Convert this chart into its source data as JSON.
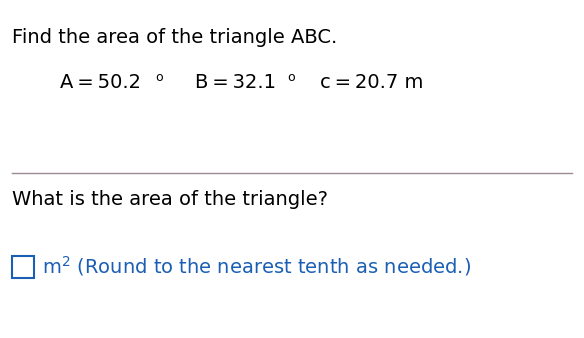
{
  "title": "Find the area of the triangle ABC.",
  "A_label": "A = 50.2",
  "B_label": "B = 32.1",
  "c_label": "c = 20.7 m",
  "question": "What is the area of the triangle?",
  "answer_hint": " (Round to the nearest tenth as needed.)",
  "title_color": "#000000",
  "given_color": "#000000",
  "question_color": "#000000",
  "answer_color": "#1a5fb4",
  "divider_color": "#9b8a96",
  "box_color": "#1a5fb4",
  "background_color": "#ffffff",
  "title_fontsize": 14,
  "given_fontsize": 14,
  "question_fontsize": 14,
  "answer_fontsize": 14
}
